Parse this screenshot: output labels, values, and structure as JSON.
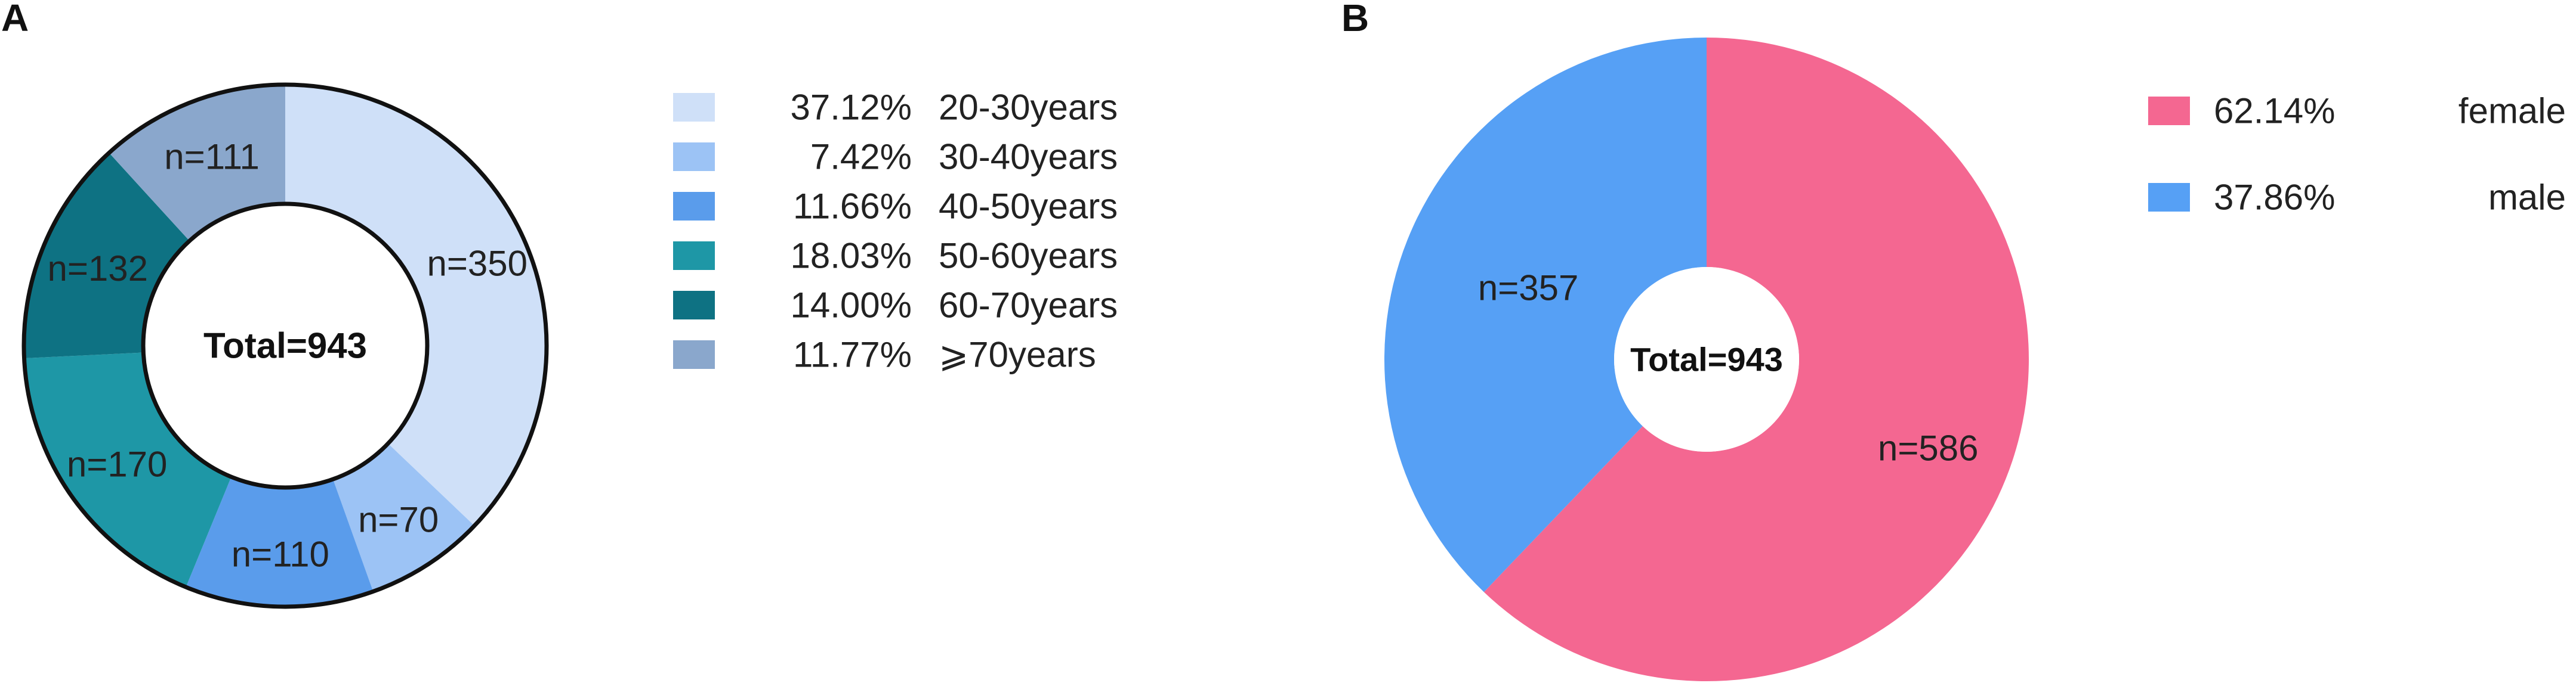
{
  "chart_data": [
    {
      "panel": "A",
      "type": "pie",
      "subtype": "donut",
      "center_label": "Total=943",
      "slices": [
        {
          "category": "20-30years",
          "percent_label": "37.12%",
          "percent": 37.12,
          "count_label": "n=350",
          "count": 350,
          "color": "#CFE0F8"
        },
        {
          "category": "30-40years",
          "percent_label": "7.42%",
          "percent": 7.42,
          "count_label": "n=70",
          "count": 70,
          "color": "#9CC3F5"
        },
        {
          "category": "40-50years",
          "percent_label": "11.66%",
          "percent": 11.66,
          "count_label": "n=110",
          "count": 110,
          "color": "#5A9CEB"
        },
        {
          "category": "50-60years",
          "percent_label": "18.03%",
          "percent": 18.03,
          "count_label": "n=170",
          "count": 170,
          "color": "#1E97A6"
        },
        {
          "category": "60-70years",
          "percent_label": "14.00%",
          "percent": 14.0,
          "count_label": "n=132",
          "count": 132,
          "color": "#0E7283"
        },
        {
          "category": "⩾70years",
          "percent_label": "11.77%",
          "percent": 11.77,
          "count_label": "n=111",
          "count": 111,
          "color": "#8AA7CC"
        }
      ],
      "legend_position": "right"
    },
    {
      "panel": "B",
      "type": "pie",
      "subtype": "donut",
      "center_label": "Total=943",
      "slices": [
        {
          "category": "female",
          "percent_label": "62.14%",
          "percent": 62.14,
          "count_label": "n=586",
          "count": 586,
          "color": "#F46791"
        },
        {
          "category": "male",
          "percent_label": "37.86%",
          "percent": 37.86,
          "count_label": "n=357",
          "count": 357,
          "color": "#56A0F5"
        }
      ],
      "legend_position": "top-right"
    }
  ]
}
